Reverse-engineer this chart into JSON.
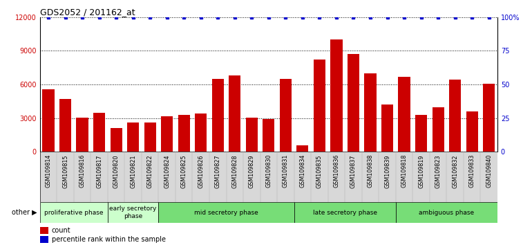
{
  "title": "GDS2052 / 201162_at",
  "categories": [
    "GSM109814",
    "GSM109815",
    "GSM109816",
    "GSM109817",
    "GSM109820",
    "GSM109821",
    "GSM109822",
    "GSM109824",
    "GSM109825",
    "GSM109826",
    "GSM109827",
    "GSM109828",
    "GSM109829",
    "GSM109830",
    "GSM109831",
    "GSM109834",
    "GSM109835",
    "GSM109836",
    "GSM109837",
    "GSM109838",
    "GSM109839",
    "GSM109818",
    "GSM109819",
    "GSM109823",
    "GSM109832",
    "GSM109833",
    "GSM109840"
  ],
  "values": [
    5600,
    4700,
    3050,
    3500,
    2100,
    2600,
    2600,
    3200,
    3300,
    3400,
    6500,
    6800,
    3050,
    2950,
    6500,
    600,
    8200,
    10000,
    8700,
    7000,
    4200,
    6700,
    3300,
    4000,
    6450,
    3600,
    6100
  ],
  "bar_color": "#cc0000",
  "percentile_color": "#0000cc",
  "ylim_left": [
    0,
    12000
  ],
  "ylim_right": [
    0,
    100
  ],
  "yticks_left": [
    0,
    3000,
    6000,
    9000,
    12000
  ],
  "yticks_right": [
    0,
    25,
    50,
    75,
    100
  ],
  "ytick_labels_right": [
    "0",
    "25",
    "50",
    "75",
    "100%"
  ],
  "phase_groups": [
    {
      "label": "proliferative phase",
      "start": 0,
      "end": 4,
      "color": "#ccffcc"
    },
    {
      "label": "early secretory\nphase",
      "start": 4,
      "end": 7,
      "color": "#ccffcc"
    },
    {
      "label": "mid secretory phase",
      "start": 7,
      "end": 15,
      "color": "#77dd77"
    },
    {
      "label": "late secretory phase",
      "start": 15,
      "end": 21,
      "color": "#77dd77"
    },
    {
      "label": "ambiguous phase",
      "start": 21,
      "end": 27,
      "color": "#77dd77"
    }
  ],
  "other_label": "other",
  "legend_count_label": "count",
  "legend_percentile_label": "percentile rank within the sample",
  "bg_color": "#ffffff",
  "grid_color": "#000000",
  "tick_bg_color": "#d8d8d8"
}
